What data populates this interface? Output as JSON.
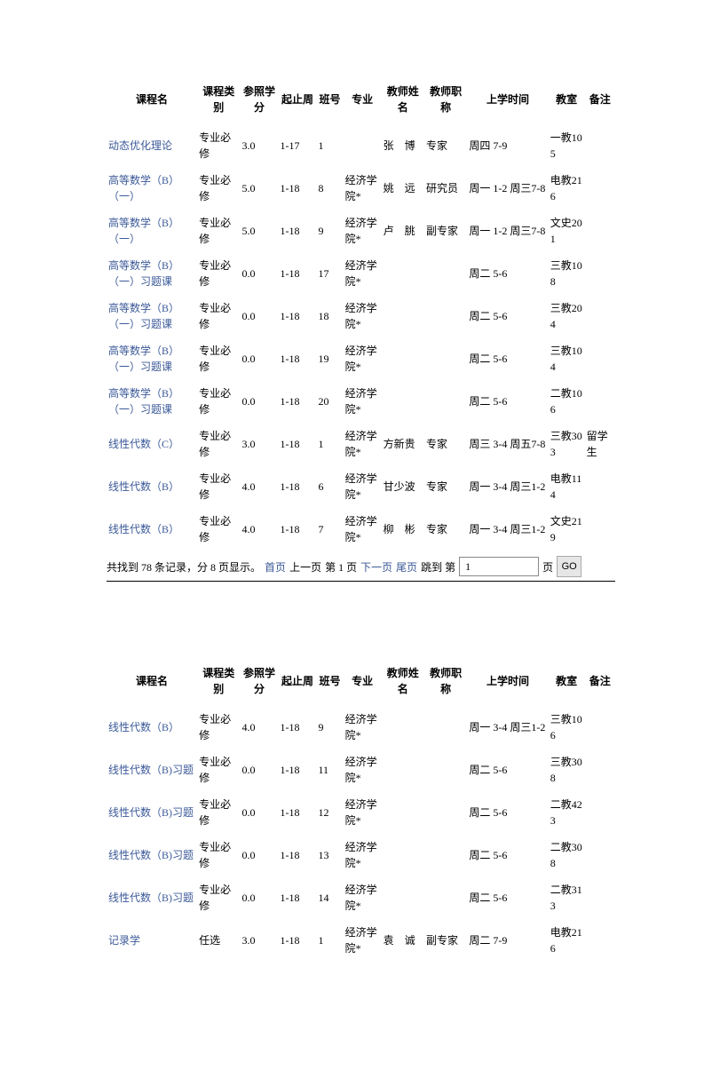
{
  "headers": {
    "course": "课程名",
    "type": "课程类别",
    "credit": "参照学分",
    "week": "起止周",
    "class": "班号",
    "major": "专业",
    "tname": "教师姓名",
    "ttitle": "教师职称",
    "time": "上学时间",
    "room": "教室",
    "note": "备注"
  },
  "table1": [
    {
      "course": "动态优化理论",
      "type": "专业必修",
      "credit": "3.0",
      "week": "1-17",
      "class": "1",
      "major": "",
      "tname": "张　博",
      "ttitle": "专家",
      "time": "周四 7-9",
      "room": "一教105",
      "note": ""
    },
    {
      "course": "高等数学（B）（一）",
      "type": "专业必修",
      "credit": "5.0",
      "week": "1-18",
      "class": "8",
      "major": "经济学院*",
      "tname": "姚　远",
      "ttitle": "研究员",
      "time": "周一 1-2 周三7-8",
      "room": "电教216",
      "note": ""
    },
    {
      "course": "高等数学（B）（一）",
      "type": "专业必修",
      "credit": "5.0",
      "week": "1-18",
      "class": "9",
      "major": "经济学院*",
      "tname": "卢　朓",
      "ttitle": "副专家",
      "time": "周一 1-2 周三7-8",
      "room": "文史201",
      "note": ""
    },
    {
      "course": "高等数学（B）（一）习题课",
      "type": "专业必修",
      "credit": "0.0",
      "week": "1-18",
      "class": "17",
      "major": "经济学院*",
      "tname": "",
      "ttitle": "",
      "time": "周二 5-6",
      "room": "三教108",
      "note": ""
    },
    {
      "course": "高等数学（B）（一）习题课",
      "type": "专业必修",
      "credit": "0.0",
      "week": "1-18",
      "class": "18",
      "major": "经济学院*",
      "tname": "",
      "ttitle": "",
      "time": "周二 5-6",
      "room": "三教204",
      "note": ""
    },
    {
      "course": "高等数学（B）（一）习题课",
      "type": "专业必修",
      "credit": "0.0",
      "week": "1-18",
      "class": "19",
      "major": "经济学院*",
      "tname": "",
      "ttitle": "",
      "time": "周二 5-6",
      "room": "三教104",
      "note": ""
    },
    {
      "course": "高等数学（B）（一）习题课",
      "type": "专业必修",
      "credit": "0.0",
      "week": "1-18",
      "class": "20",
      "major": "经济学院*",
      "tname": "",
      "ttitle": "",
      "time": "周二 5-6",
      "room": "二教106",
      "note": ""
    },
    {
      "course": "线性代数（C）",
      "type": "专业必修",
      "credit": "3.0",
      "week": "1-18",
      "class": "1",
      "major": "经济学院*",
      "tname": "方新贵",
      "ttitle": "专家",
      "time": "周三 3-4 周五7-8",
      "room": "三教303",
      "note": "留学生"
    },
    {
      "course": "线性代数（B）",
      "type": "专业必修",
      "credit": "4.0",
      "week": "1-18",
      "class": "6",
      "major": "经济学院*",
      "tname": "甘少波",
      "ttitle": "专家",
      "time": "周一 3-4 周三1-2",
      "room": "电教114",
      "note": ""
    },
    {
      "course": "线性代数（B）",
      "type": "专业必修",
      "credit": "4.0",
      "week": "1-18",
      "class": "7",
      "major": "经济学院*",
      "tname": "柳　彬",
      "ttitle": "专家",
      "time": "周一 3-4 周三1-2",
      "room": "文史219",
      "note": ""
    }
  ],
  "table2": [
    {
      "course": "线性代数（B）",
      "type": "专业必修",
      "credit": "4.0",
      "week": "1-18",
      "class": "9",
      "major": "经济学院*",
      "tname": "",
      "ttitle": "",
      "time": "周一 3-4 周三1-2",
      "room": "三教106",
      "note": ""
    },
    {
      "course": "线性代数（B)习题",
      "type": "专业必修",
      "credit": "0.0",
      "week": "1-18",
      "class": "11",
      "major": "经济学院*",
      "tname": "",
      "ttitle": "",
      "time": "周二 5-6",
      "room": "三教308",
      "note": ""
    },
    {
      "course": "线性代数（B)习题",
      "type": "专业必修",
      "credit": "0.0",
      "week": "1-18",
      "class": "12",
      "major": "经济学院*",
      "tname": "",
      "ttitle": "",
      "time": "周二 5-6",
      "room": "二教423",
      "note": ""
    },
    {
      "course": "线性代数（B)习题",
      "type": "专业必修",
      "credit": "0.0",
      "week": "1-18",
      "class": "13",
      "major": "经济学院*",
      "tname": "",
      "ttitle": "",
      "time": "周二 5-6",
      "room": "二教308",
      "note": ""
    },
    {
      "course": "线性代数（B)习题",
      "type": "专业必修",
      "credit": "0.0",
      "week": "1-18",
      "class": "14",
      "major": "经济学院*",
      "tname": "",
      "ttitle": "",
      "time": "周二 5-6",
      "room": "二教313",
      "note": ""
    },
    {
      "course": "记录学",
      "type": "任选",
      "credit": "3.0",
      "week": "1-18",
      "class": "1",
      "major": "经济学院*",
      "tname": "袁　诚",
      "ttitle": "副专家",
      "time": "周二 7-9",
      "room": "电教216",
      "note": ""
    }
  ],
  "pager": {
    "summary_prefix": "共找到 ",
    "total": "78",
    "summary_mid": " 条记录，分 ",
    "pages": "8",
    "summary_suffix": " 页显示。",
    "first": "首页",
    "prev": "上一页",
    "current": "第 1 页",
    "next": "下一页",
    "last": "尾页",
    "jump": "跳到 第",
    "input_value": "1",
    "page_suffix": "页",
    "go": "GO"
  }
}
